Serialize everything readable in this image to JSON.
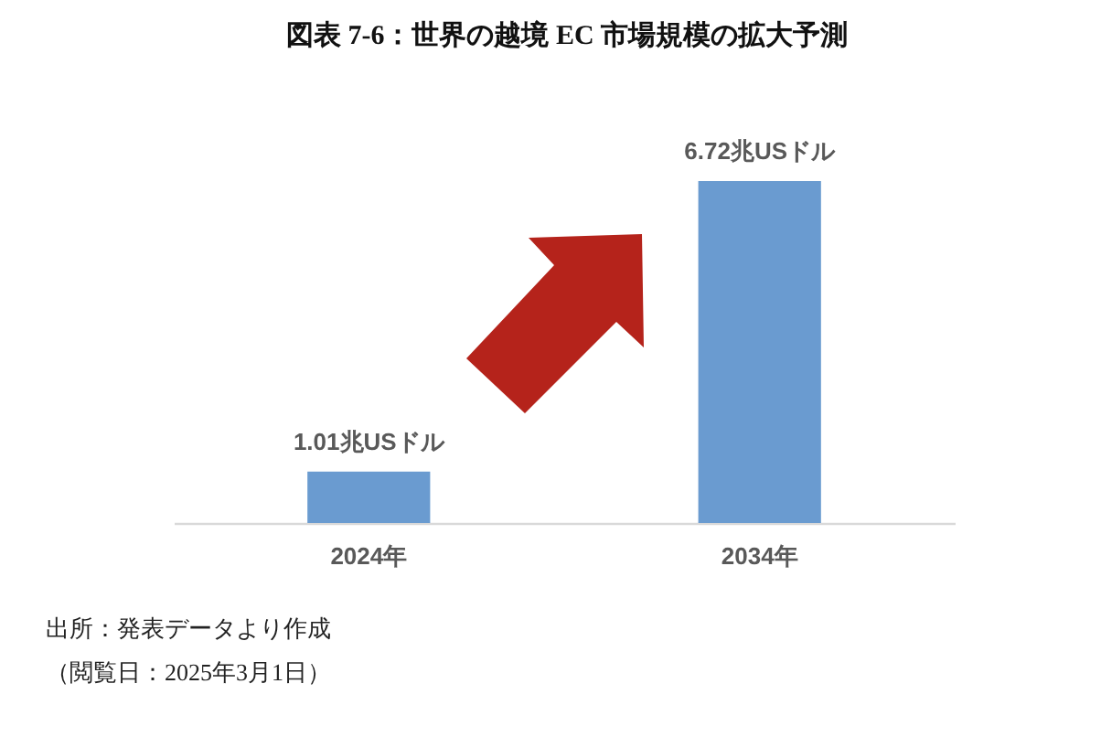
{
  "chart_data": {
    "type": "bar",
    "title": "図表 7-6：世界の越境 EC 市場規模の拡大予測",
    "categories": [
      "2024年",
      "2034年"
    ],
    "values": [
      1.01,
      6.72
    ],
    "value_labels": [
      "1.01兆USドル",
      "6.72兆USドル"
    ],
    "color": "#6a9bd0",
    "annotations": [
      "出所：発表データより作成",
      "（閲覧日：2025年3月1日）"
    ]
  }
}
